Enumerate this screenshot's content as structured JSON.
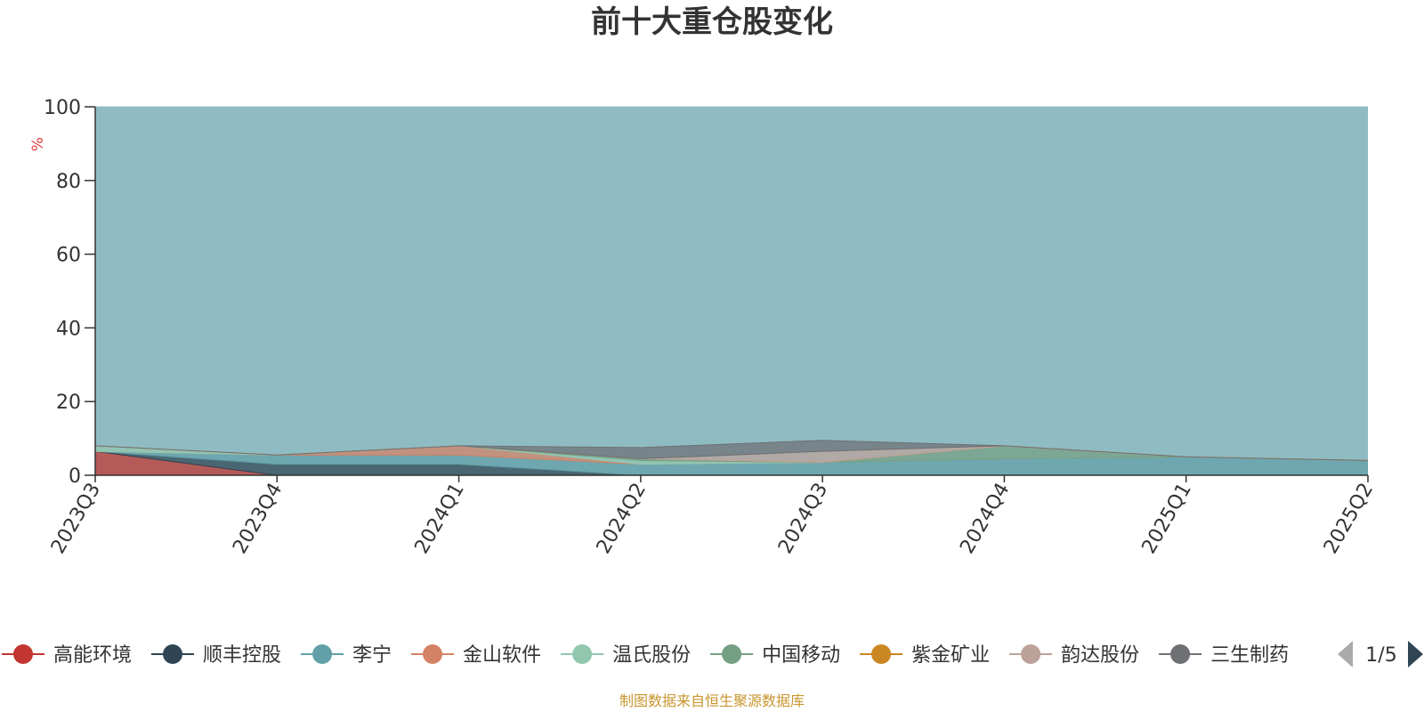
{
  "chart_data": {
    "type": "area",
    "title": "前十大重仓股变化",
    "ylabel": "%",
    "ylim": [
      0,
      100
    ],
    "yticks": [
      0,
      20,
      40,
      60,
      80,
      100
    ],
    "stacked": true,
    "categories": [
      "2023Q3",
      "2023Q4",
      "2024Q1",
      "2024Q2",
      "2024Q3",
      "2024Q4",
      "2025Q1",
      "2025Q2"
    ],
    "grid": true,
    "series": [
      {
        "name": "高能环境",
        "values": [
          6.5,
          0,
          0,
          0,
          0,
          0,
          0,
          0
        ]
      },
      {
        "name": "顺丰控股",
        "values": [
          0,
          3,
          3,
          0,
          0,
          0,
          0,
          0
        ]
      },
      {
        "name": "李宁",
        "values": [
          0,
          2.5,
          2.5,
          3,
          3.5,
          4.5,
          5,
          4
        ]
      },
      {
        "name": "金山软件",
        "values": [
          0,
          0,
          2.5,
          0,
          0,
          0,
          0,
          0
        ]
      },
      {
        "name": "温氏股份",
        "values": [
          1.5,
          0,
          0,
          1,
          0,
          0,
          0,
          0
        ]
      },
      {
        "name": "中国移动",
        "values": [
          0,
          0,
          0,
          0.5,
          0,
          3.5,
          0,
          0
        ]
      },
      {
        "name": "紫金矿业",
        "values": [
          0,
          0,
          0,
          0,
          0,
          0,
          0,
          0
        ]
      },
      {
        "name": "韵达股份",
        "values": [
          0,
          0,
          0,
          0,
          3,
          0,
          0,
          0
        ]
      },
      {
        "name": "三生制药",
        "values": [
          0,
          0,
          0,
          3,
          3,
          0,
          0,
          0
        ]
      }
    ]
  },
  "legend": {
    "items": [
      {
        "label": "高能环境",
        "color": "#c23531"
      },
      {
        "label": "顺丰控股",
        "color": "#2f4554"
      },
      {
        "label": "李宁",
        "color": "#61a0a8"
      },
      {
        "label": "金山软件",
        "color": "#d48265"
      },
      {
        "label": "温氏股份",
        "color": "#91c7ae"
      },
      {
        "label": "中国移动",
        "color": "#749f83"
      },
      {
        "label": "紫金矿业",
        "color": "#ca8622"
      },
      {
        "label": "韵达股份",
        "color": "#bda29a"
      },
      {
        "label": "三生制药",
        "color": "#6e7074"
      }
    ],
    "page": "1/5"
  },
  "source": "制图数据来自恒生聚源数据库"
}
